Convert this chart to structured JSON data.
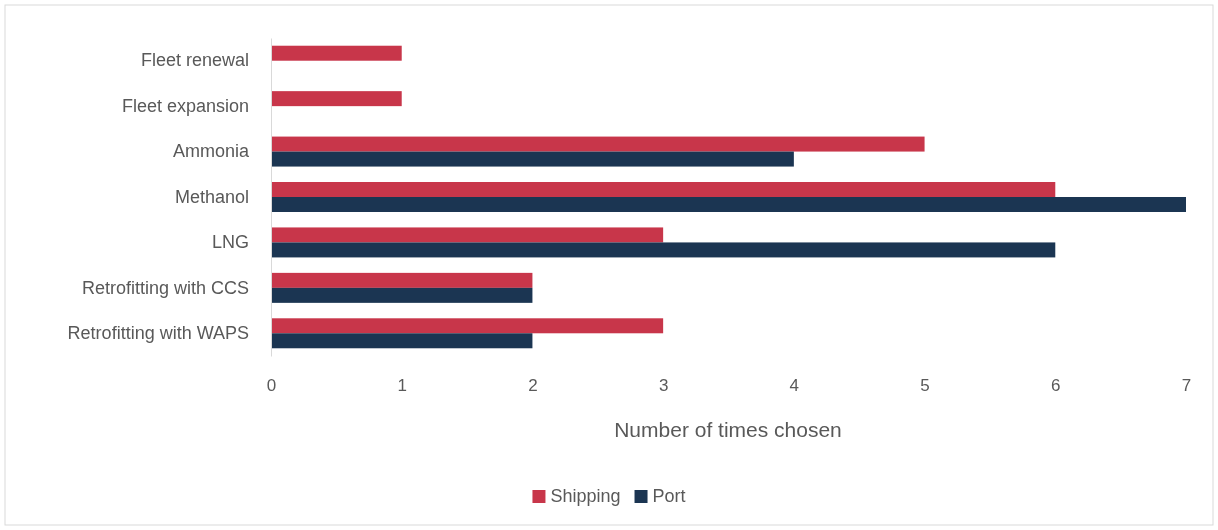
{
  "chart_data": {
    "type": "bar",
    "orientation": "horizontal",
    "xlabel": "Number of times chosen",
    "categories": [
      "Fleet renewal",
      "Fleet expansion",
      "Ammonia",
      "Methanol",
      "LNG",
      "Retrofitting with CCS",
      "Retrofitting with WAPS"
    ],
    "series": [
      {
        "name": "Shipping",
        "color": "#c8364a",
        "values": [
          1,
          1,
          5,
          6,
          3,
          2,
          3
        ]
      },
      {
        "name": "Port",
        "color": "#1b3552",
        "values": [
          0,
          0,
          4,
          7,
          6,
          2,
          2
        ]
      }
    ],
    "xlim": [
      0,
      7
    ],
    "xticks": [
      0,
      1,
      2,
      3,
      4,
      5,
      6,
      7
    ],
    "grid": false,
    "legend": "bottom"
  }
}
